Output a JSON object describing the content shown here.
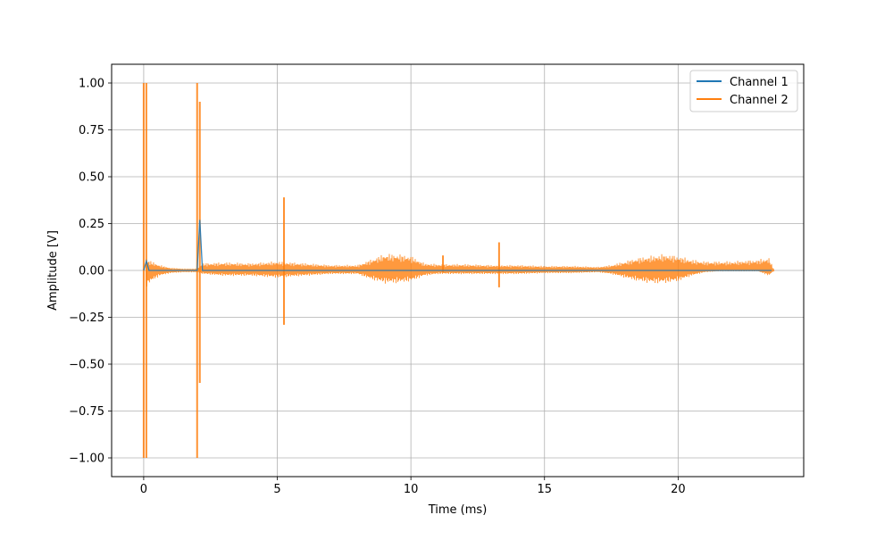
{
  "chart_data": {
    "type": "line",
    "title": "",
    "xlabel": "Time (ms)",
    "ylabel": "Amplitude [V]",
    "xlim": [
      -1.2,
      24.7
    ],
    "ylim": [
      -1.1,
      1.1
    ],
    "grid": true,
    "legend_position": "upper right",
    "x_ticks": [
      0,
      5,
      10,
      15,
      20
    ],
    "y_ticks": [
      1.0,
      0.75,
      0.5,
      0.25,
      0.0,
      -0.25,
      -0.5,
      -0.75,
      -1.0
    ],
    "x_tick_labels": [
      "0",
      "5",
      "10",
      "15",
      "20"
    ],
    "y_tick_labels": [
      "1.00",
      "0.75",
      "0.50",
      "0.25",
      "0.00",
      "−0.25",
      "−0.50",
      "−0.75",
      "−1.00"
    ],
    "series": [
      {
        "name": "Channel 1",
        "color": "#1f77b4",
        "x": [
          0,
          0.1,
          0.2,
          1.0,
          2.0,
          2.1,
          2.2,
          5.0,
          10.0,
          15.0,
          20.0,
          23.0,
          23.5
        ],
        "y": [
          0.0,
          0.05,
          0.0,
          0.0,
          0.0,
          0.27,
          0.0,
          0.0,
          0.0,
          0.0,
          0.0,
          0.0,
          0.0
        ]
      },
      {
        "name": "Channel 2",
        "color": "#ff7f0e",
        "envelope": {
          "x": [
            0.1,
            0.3,
            0.6,
            1.0,
            1.5,
            2.0,
            2.2,
            3.0,
            4.0,
            5.0,
            6.0,
            7.0,
            8.0,
            8.5,
            9.0,
            9.5,
            10.0,
            10.5,
            11.0,
            12.0,
            13.0,
            14.0,
            15.0,
            16.0,
            17.0,
            17.5,
            18.0,
            18.5,
            19.0,
            19.5,
            20.0,
            20.5,
            21.0,
            21.5,
            22.0,
            22.5,
            23.0,
            23.4,
            23.6
          ],
          "upper": [
            0.06,
            0.05,
            0.03,
            0.015,
            0.01,
            0.01,
            0.04,
            0.045,
            0.04,
            0.05,
            0.04,
            0.03,
            0.03,
            0.06,
            0.09,
            0.09,
            0.08,
            0.04,
            0.035,
            0.035,
            0.03,
            0.03,
            0.025,
            0.025,
            0.02,
            0.03,
            0.05,
            0.07,
            0.08,
            0.09,
            0.08,
            0.06,
            0.05,
            0.05,
            0.05,
            0.055,
            0.06,
            0.07,
            0.0
          ],
          "lower": [
            -0.09,
            -0.06,
            -0.03,
            -0.015,
            -0.01,
            -0.01,
            -0.02,
            -0.03,
            -0.03,
            -0.04,
            -0.03,
            -0.02,
            -0.02,
            -0.05,
            -0.07,
            -0.07,
            -0.06,
            -0.03,
            -0.02,
            -0.02,
            -0.02,
            -0.02,
            -0.015,
            -0.015,
            -0.01,
            -0.02,
            -0.04,
            -0.06,
            -0.07,
            -0.07,
            -0.06,
            -0.03,
            -0.01,
            -0.005,
            -0.005,
            -0.005,
            -0.005,
            -0.03,
            0.0
          ]
        },
        "spikes": [
          {
            "x": 0.0,
            "min": -1.0,
            "max": 1.0
          },
          {
            "x": 0.1,
            "min": -1.0,
            "max": 1.0
          },
          {
            "x": 2.0,
            "min": -1.0,
            "max": 1.0
          },
          {
            "x": 2.1,
            "min": -0.6,
            "max": 0.9
          },
          {
            "x": 5.25,
            "min": -0.29,
            "max": 0.39
          },
          {
            "x": 11.2,
            "min": -0.01,
            "max": 0.08
          },
          {
            "x": 13.3,
            "min": -0.09,
            "max": 0.15
          }
        ]
      }
    ]
  }
}
